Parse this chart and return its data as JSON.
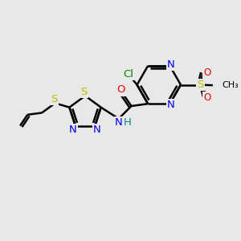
{
  "background_color": "#e8e8e8",
  "atoms": {
    "colors": {
      "C": "#000000",
      "N": "#0000ee",
      "O": "#ee0000",
      "S": "#bbbb00",
      "Cl": "#008800",
      "H": "#008888"
    }
  },
  "bond_color": "#000000",
  "bond_width": 1.8,
  "font_size": 9.5
}
